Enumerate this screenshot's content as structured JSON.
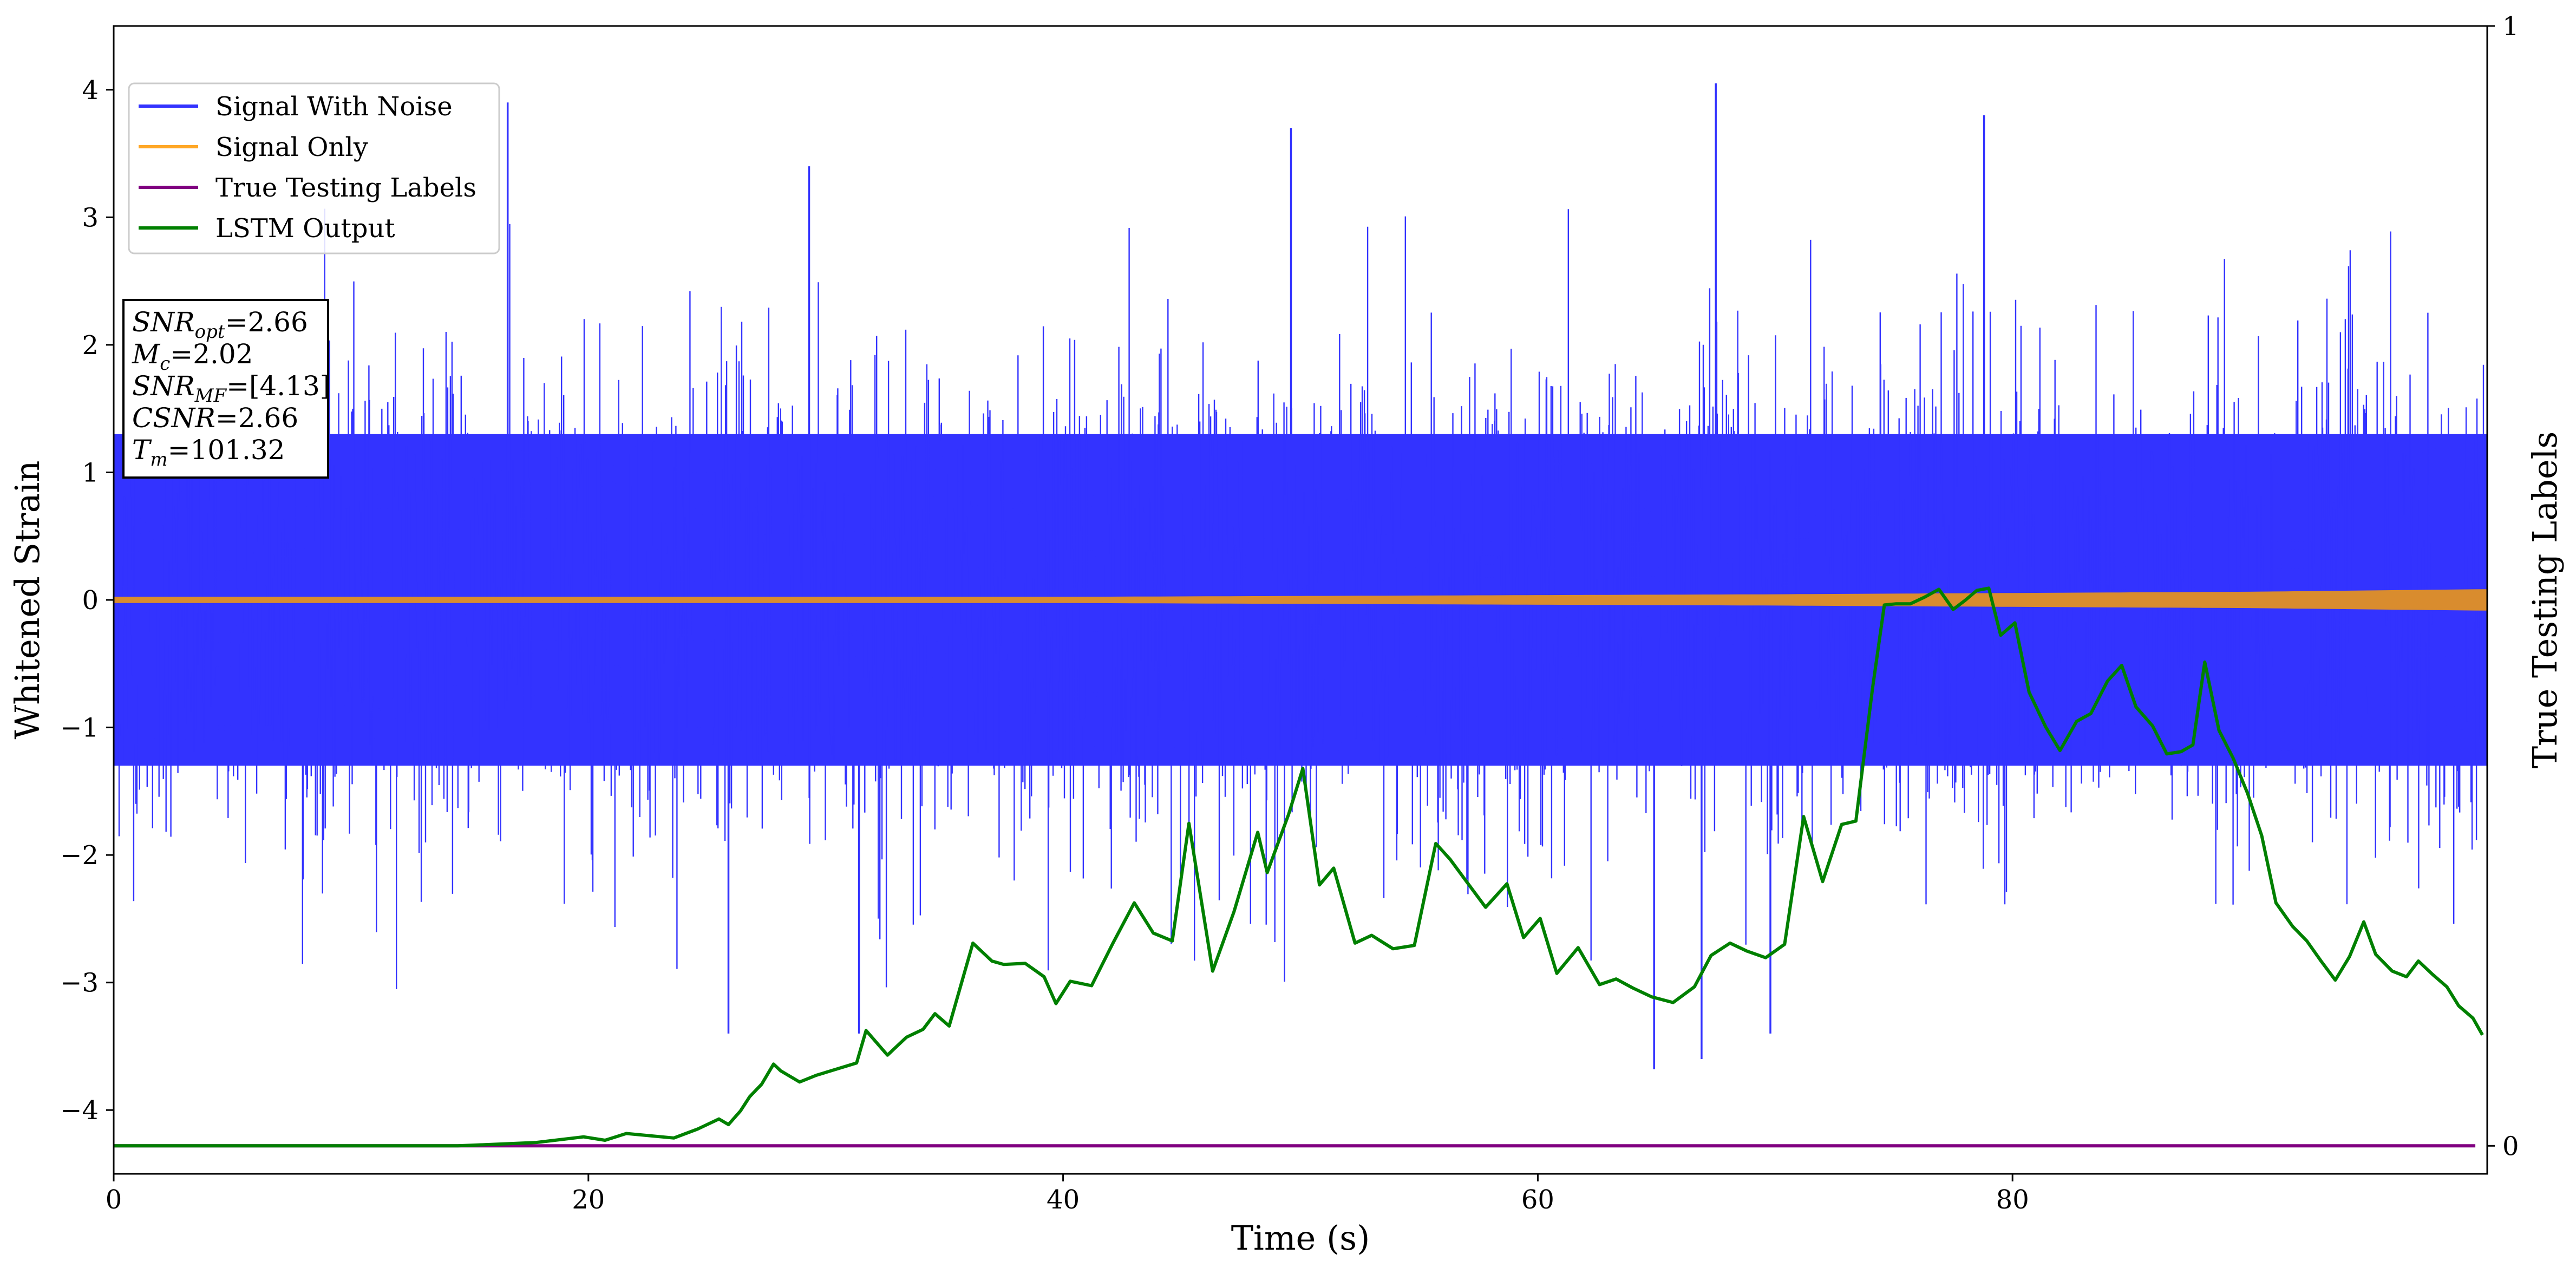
{
  "chart_data": {
    "type": "line",
    "xlabel": "Time (s)",
    "ylabel": "Whitened Strain",
    "y2label": "True Testing Labels",
    "xlim": [
      0,
      100
    ],
    "ylim": [
      -4.5,
      4.5
    ],
    "y2lim": [
      -0.025,
      1.0
    ],
    "x_ticks": [
      0,
      20,
      40,
      60,
      80
    ],
    "y_ticks": [
      -4,
      -3,
      -2,
      -1,
      0,
      1,
      2,
      3,
      4
    ],
    "y2_ticks": [
      0,
      1
    ],
    "grid": false,
    "legend_position": "top-left",
    "series": [
      {
        "name": "Signal With Noise",
        "axis": "left",
        "color": "#3333ff",
        "description_level": "noise band",
        "band_range": [
          -1.3,
          1.3
        ],
        "peak_up": [
          [
            67.5,
            4.05
          ],
          [
            78.8,
            3.8
          ],
          [
            16.6,
            3.9
          ],
          [
            29.3,
            3.4
          ],
          [
            49.6,
            3.7
          ]
        ],
        "peak_down": [
          [
            64.9,
            -3.68
          ],
          [
            66.9,
            -3.6
          ],
          [
            25.9,
            -3.4
          ],
          [
            31.4,
            -3.4
          ],
          [
            69.8,
            -3.4
          ]
        ]
      },
      {
        "name": "Signal Only",
        "axis": "left",
        "color": "#ffa726",
        "envelope": [
          [
            0,
            0.02
          ],
          [
            40,
            0.02
          ],
          [
            70,
            0.04
          ],
          [
            90,
            0.06
          ],
          [
            100,
            0.08
          ]
        ]
      },
      {
        "name": "True Testing Labels",
        "axis": "right",
        "color": "#800080",
        "x": [
          0,
          99.5
        ],
        "y": [
          0,
          0
        ]
      },
      {
        "name": "LSTM Output",
        "axis": "right",
        "color": "#008000",
        "points": [
          [
            0,
            0.0
          ],
          [
            14.5,
            0.0
          ],
          [
            17.8,
            0.003
          ],
          [
            19.8,
            0.008
          ],
          [
            20.7,
            0.005
          ],
          [
            21.6,
            0.011
          ],
          [
            23.6,
            0.007
          ],
          [
            24.6,
            0.015
          ],
          [
            25.5,
            0.024
          ],
          [
            25.9,
            0.019
          ],
          [
            26.4,
            0.031
          ],
          [
            26.8,
            0.044
          ],
          [
            27.3,
            0.055
          ],
          [
            27.8,
            0.073
          ],
          [
            28.1,
            0.067
          ],
          [
            28.9,
            0.057
          ],
          [
            29.6,
            0.063
          ],
          [
            31.3,
            0.074
          ],
          [
            31.7,
            0.103
          ],
          [
            32.6,
            0.081
          ],
          [
            33.4,
            0.097
          ],
          [
            34.1,
            0.104
          ],
          [
            34.6,
            0.118
          ],
          [
            35.2,
            0.107
          ],
          [
            36.2,
            0.181
          ],
          [
            37.0,
            0.165
          ],
          [
            37.5,
            0.162
          ],
          [
            38.4,
            0.163
          ],
          [
            39.2,
            0.151
          ],
          [
            39.7,
            0.127
          ],
          [
            40.3,
            0.147
          ],
          [
            41.2,
            0.143
          ],
          [
            42.1,
            0.181
          ],
          [
            43.0,
            0.217
          ],
          [
            43.8,
            0.19
          ],
          [
            44.6,
            0.183
          ],
          [
            45.3,
            0.288
          ],
          [
            46.3,
            0.156
          ],
          [
            47.2,
            0.209
          ],
          [
            48.2,
            0.28
          ],
          [
            48.6,
            0.244
          ],
          [
            49.5,
            0.296
          ],
          [
            50.1,
            0.337
          ],
          [
            50.8,
            0.233
          ],
          [
            51.4,
            0.248
          ],
          [
            52.3,
            0.181
          ],
          [
            53.0,
            0.188
          ],
          [
            53.9,
            0.176
          ],
          [
            54.8,
            0.179
          ],
          [
            55.7,
            0.27
          ],
          [
            56.3,
            0.256
          ],
          [
            57.1,
            0.233
          ],
          [
            57.8,
            0.213
          ],
          [
            58.7,
            0.234
          ],
          [
            59.4,
            0.186
          ],
          [
            60.1,
            0.203
          ],
          [
            60.8,
            0.154
          ],
          [
            61.7,
            0.177
          ],
          [
            62.6,
            0.144
          ],
          [
            63.3,
            0.149
          ],
          [
            64.0,
            0.141
          ],
          [
            64.8,
            0.133
          ],
          [
            65.7,
            0.128
          ],
          [
            66.6,
            0.142
          ],
          [
            67.3,
            0.17
          ],
          [
            68.1,
            0.181
          ],
          [
            68.8,
            0.174
          ],
          [
            69.6,
            0.168
          ],
          [
            70.4,
            0.18
          ],
          [
            71.2,
            0.294
          ],
          [
            72.0,
            0.236
          ],
          [
            72.8,
            0.287
          ],
          [
            73.4,
            0.29
          ],
          [
            74.1,
            0.408
          ],
          [
            74.6,
            0.483
          ],
          [
            75.1,
            0.484
          ],
          [
            75.7,
            0.484
          ],
          [
            76.3,
            0.49
          ],
          [
            76.9,
            0.497
          ],
          [
            77.5,
            0.479
          ],
          [
            78.0,
            0.487
          ],
          [
            78.5,
            0.496
          ],
          [
            79.0,
            0.498
          ],
          [
            79.5,
            0.456
          ],
          [
            80.1,
            0.467
          ],
          [
            80.7,
            0.405
          ],
          [
            81.4,
            0.374
          ],
          [
            82.0,
            0.353
          ],
          [
            82.7,
            0.379
          ],
          [
            83.3,
            0.386
          ],
          [
            84.0,
            0.415
          ],
          [
            84.6,
            0.429
          ],
          [
            85.2,
            0.392
          ],
          [
            85.9,
            0.375
          ],
          [
            86.5,
            0.35
          ],
          [
            87.1,
            0.352
          ],
          [
            87.6,
            0.358
          ],
          [
            88.1,
            0.432
          ],
          [
            88.7,
            0.371
          ],
          [
            89.3,
            0.346
          ],
          [
            89.9,
            0.315
          ],
          [
            90.5,
            0.277
          ],
          [
            91.1,
            0.217
          ],
          [
            91.8,
            0.196
          ],
          [
            92.4,
            0.183
          ],
          [
            93.0,
            0.165
          ],
          [
            93.6,
            0.148
          ],
          [
            94.2,
            0.169
          ],
          [
            94.8,
            0.2
          ],
          [
            95.3,
            0.171
          ],
          [
            96.0,
            0.156
          ],
          [
            96.6,
            0.151
          ],
          [
            97.1,
            0.165
          ],
          [
            97.7,
            0.153
          ],
          [
            98.3,
            0.142
          ],
          [
            98.8,
            0.125
          ],
          [
            99.4,
            0.114
          ],
          [
            99.8,
            0.099
          ]
        ]
      }
    ],
    "annotation": {
      "lines": [
        {
          "sym": "SNR",
          "sub": "opt",
          "val": "=2.66"
        },
        {
          "sym": "M",
          "sub": "c",
          "val": "=2.02"
        },
        {
          "sym": "SNR",
          "sub": "MF",
          "val": "=[4.13]"
        },
        {
          "sym": "CSNR",
          "sub": "",
          "val": "=2.66"
        },
        {
          "sym": "T",
          "sub": "m",
          "val": "=101.32"
        }
      ]
    }
  }
}
